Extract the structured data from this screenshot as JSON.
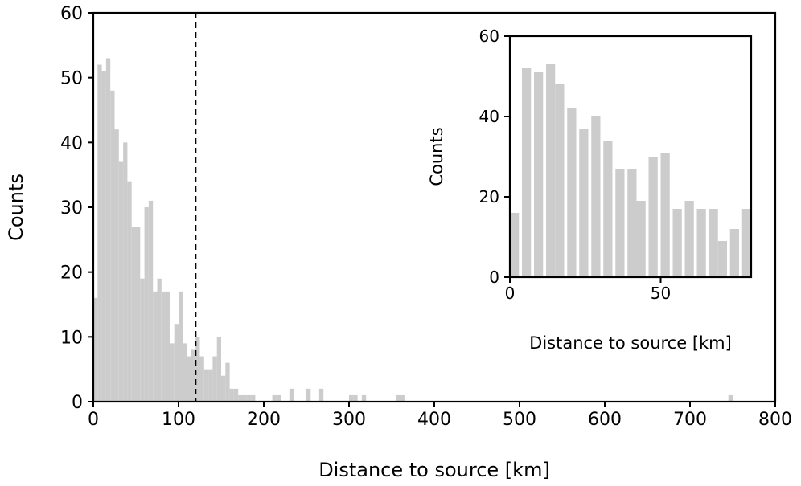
{
  "chart_data": [
    {
      "type": "bar",
      "subtype": "histogram",
      "bin_width_km": 5,
      "xlabel": "Distance to source [km]",
      "ylabel": "Counts",
      "xlim": [
        0,
        800
      ],
      "ylim": [
        0,
        60
      ],
      "xticks": [
        0,
        100,
        200,
        300,
        400,
        500,
        600,
        700,
        800
      ],
      "yticks": [
        0,
        10,
        20,
        30,
        40,
        50,
        60
      ],
      "color": "#cccccc",
      "reference_line": {
        "x": 120,
        "style": "dashed",
        "color": "#000000"
      },
      "bins": [
        {
          "x": 0,
          "count": 16
        },
        {
          "x": 5,
          "count": 52
        },
        {
          "x": 10,
          "count": 51
        },
        {
          "x": 15,
          "count": 53
        },
        {
          "x": 20,
          "count": 48
        },
        {
          "x": 25,
          "count": 42
        },
        {
          "x": 30,
          "count": 37
        },
        {
          "x": 35,
          "count": 40
        },
        {
          "x": 40,
          "count": 34
        },
        {
          "x": 45,
          "count": 27
        },
        {
          "x": 50,
          "count": 27
        },
        {
          "x": 55,
          "count": 19
        },
        {
          "x": 60,
          "count": 30
        },
        {
          "x": 65,
          "count": 31
        },
        {
          "x": 70,
          "count": 17
        },
        {
          "x": 75,
          "count": 19
        },
        {
          "x": 80,
          "count": 17
        },
        {
          "x": 85,
          "count": 17
        },
        {
          "x": 90,
          "count": 9
        },
        {
          "x": 95,
          "count": 12
        },
        {
          "x": 100,
          "count": 17
        },
        {
          "x": 105,
          "count": 9
        },
        {
          "x": 110,
          "count": 7
        },
        {
          "x": 115,
          "count": 8
        },
        {
          "x": 120,
          "count": 10
        },
        {
          "x": 125,
          "count": 7
        },
        {
          "x": 130,
          "count": 5
        },
        {
          "x": 135,
          "count": 5
        },
        {
          "x": 140,
          "count": 7
        },
        {
          "x": 145,
          "count": 10
        },
        {
          "x": 150,
          "count": 4
        },
        {
          "x": 155,
          "count": 6
        },
        {
          "x": 160,
          "count": 2
        },
        {
          "x": 165,
          "count": 2
        },
        {
          "x": 170,
          "count": 1
        },
        {
          "x": 175,
          "count": 1
        },
        {
          "x": 180,
          "count": 1
        },
        {
          "x": 185,
          "count": 1
        },
        {
          "x": 190,
          "count": 0
        },
        {
          "x": 200,
          "count": 0
        },
        {
          "x": 210,
          "count": 1
        },
        {
          "x": 215,
          "count": 1
        },
        {
          "x": 230,
          "count": 2
        },
        {
          "x": 250,
          "count": 2
        },
        {
          "x": 265,
          "count": 2
        },
        {
          "x": 300,
          "count": 1
        },
        {
          "x": 305,
          "count": 1
        },
        {
          "x": 315,
          "count": 1
        },
        {
          "x": 355,
          "count": 1
        },
        {
          "x": 360,
          "count": 1
        },
        {
          "x": 745,
          "count": 1
        }
      ]
    },
    {
      "type": "bar",
      "subtype": "histogram",
      "role": "inset",
      "bin_width_km": 3,
      "xlabel": "Distance to source [km]",
      "ylabel": "Counts",
      "xlim": [
        0,
        80
      ],
      "ylim": [
        0,
        60
      ],
      "xticks": [
        0,
        50
      ],
      "yticks": [
        0,
        20,
        40,
        60
      ],
      "color": "#cccccc",
      "bins": [
        {
          "x": 0,
          "count": 16
        },
        {
          "x": 4,
          "count": 52
        },
        {
          "x": 8,
          "count": 51
        },
        {
          "x": 12,
          "count": 53
        },
        {
          "x": 15,
          "count": 48
        },
        {
          "x": 19,
          "count": 42
        },
        {
          "x": 23,
          "count": 37
        },
        {
          "x": 27,
          "count": 40
        },
        {
          "x": 31,
          "count": 34
        },
        {
          "x": 35,
          "count": 27
        },
        {
          "x": 39,
          "count": 27
        },
        {
          "x": 42,
          "count": 19
        },
        {
          "x": 46,
          "count": 30
        },
        {
          "x": 50,
          "count": 31
        },
        {
          "x": 54,
          "count": 17
        },
        {
          "x": 58,
          "count": 19
        },
        {
          "x": 62,
          "count": 17
        },
        {
          "x": 66,
          "count": 17
        },
        {
          "x": 69,
          "count": 9
        },
        {
          "x": 73,
          "count": 12
        },
        {
          "x": 77,
          "count": 17
        }
      ]
    }
  ]
}
